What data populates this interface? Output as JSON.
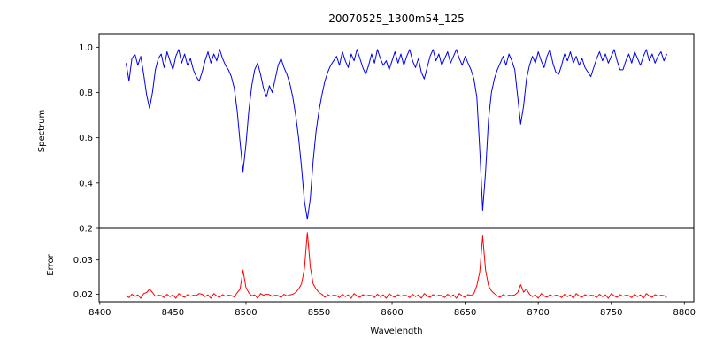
{
  "figure": {
    "title": "20070525_1300m54_125",
    "background": "#ffffff"
  },
  "chart_data": [
    {
      "type": "line",
      "title": "20070525_1300m54_125",
      "ylabel": "Spectrum",
      "xlim": [
        8399.5,
        8806.5
      ],
      "ylim": [
        0.2,
        1.06
      ],
      "yticks": [
        0.2,
        0.4,
        0.6,
        0.8,
        1.0
      ],
      "ytick_labels": [
        "0.2",
        "0.4",
        "0.6",
        "0.8",
        "1.0"
      ],
      "grid": false,
      "legend": "none",
      "annotations": [
        "strong absorption lines near 8498, 8542, 8662 (Ca II triplet), smaller line near 8688"
      ],
      "series": [
        {
          "name": "spectrum",
          "color": "#0000ee",
          "x_start": 8418,
          "x_step": 2,
          "values": [
            0.93,
            0.85,
            0.95,
            0.97,
            0.92,
            0.96,
            0.88,
            0.79,
            0.73,
            0.8,
            0.9,
            0.95,
            0.97,
            0.91,
            0.98,
            0.94,
            0.9,
            0.96,
            0.99,
            0.93,
            0.97,
            0.92,
            0.95,
            0.9,
            0.87,
            0.85,
            0.89,
            0.94,
            0.98,
            0.93,
            0.97,
            0.94,
            0.99,
            0.95,
            0.92,
            0.9,
            0.87,
            0.82,
            0.72,
            0.58,
            0.45,
            0.57,
            0.72,
            0.83,
            0.9,
            0.93,
            0.88,
            0.82,
            0.78,
            0.83,
            0.8,
            0.86,
            0.92,
            0.95,
            0.91,
            0.88,
            0.84,
            0.78,
            0.7,
            0.6,
            0.47,
            0.32,
            0.24,
            0.33,
            0.5,
            0.63,
            0.72,
            0.79,
            0.85,
            0.89,
            0.92,
            0.94,
            0.96,
            0.92,
            0.98,
            0.94,
            0.91,
            0.97,
            0.94,
            0.99,
            0.95,
            0.91,
            0.88,
            0.92,
            0.97,
            0.93,
            0.99,
            0.95,
            0.92,
            0.94,
            0.9,
            0.94,
            0.98,
            0.93,
            0.97,
            0.92,
            0.96,
            0.99,
            0.94,
            0.91,
            0.95,
            0.89,
            0.86,
            0.91,
            0.96,
            0.99,
            0.94,
            0.97,
            0.92,
            0.95,
            0.98,
            0.93,
            0.96,
            0.99,
            0.95,
            0.92,
            0.96,
            0.93,
            0.9,
            0.86,
            0.78,
            0.55,
            0.28,
            0.45,
            0.68,
            0.8,
            0.86,
            0.9,
            0.93,
            0.96,
            0.92,
            0.97,
            0.94,
            0.9,
            0.78,
            0.66,
            0.74,
            0.86,
            0.92,
            0.96,
            0.93,
            0.98,
            0.94,
            0.91,
            0.96,
            0.99,
            0.93,
            0.89,
            0.88,
            0.92,
            0.97,
            0.94,
            0.98,
            0.93,
            0.96,
            0.92,
            0.95,
            0.91,
            0.89,
            0.87,
            0.91,
            0.95,
            0.98,
            0.94,
            0.97,
            0.93,
            0.96,
            0.99,
            0.94,
            0.9,
            0.9,
            0.94,
            0.97,
            0.93,
            0.98,
            0.95,
            0.92,
            0.96,
            0.99,
            0.94,
            0.97,
            0.93,
            0.96,
            0.98,
            0.94,
            0.97
          ]
        }
      ]
    },
    {
      "type": "line",
      "ylabel": "Error",
      "xlabel": "Wavelength",
      "xlim": [
        8399.5,
        8806.5
      ],
      "ylim": [
        0.0178,
        0.0392
      ],
      "yticks": [
        0.02,
        0.03
      ],
      "ytick_labels": [
        "0.02",
        "0.03"
      ],
      "xticks": [
        8400,
        8450,
        8500,
        8550,
        8600,
        8650,
        8700,
        8750,
        8800
      ],
      "xtick_labels": [
        "8400",
        "8450",
        "8500",
        "8550",
        "8600",
        "8650",
        "8700",
        "8750",
        "8800"
      ],
      "grid": false,
      "legend": "none",
      "annotations": [
        "error spikes at 8498, 8542, 8662, 8688 matching the absorption lines"
      ],
      "series": [
        {
          "name": "error",
          "color": "#ff0000",
          "x_start": 8418,
          "x_step": 2,
          "values": [
            0.0196,
            0.019,
            0.02,
            0.0193,
            0.0198,
            0.0188,
            0.0202,
            0.0205,
            0.0215,
            0.0205,
            0.0194,
            0.0197,
            0.0196,
            0.019,
            0.02,
            0.0193,
            0.0198,
            0.0188,
            0.0202,
            0.0195,
            0.0191,
            0.0199,
            0.0194,
            0.0197,
            0.0196,
            0.0202,
            0.02,
            0.0193,
            0.0198,
            0.0188,
            0.0202,
            0.0195,
            0.0191,
            0.0199,
            0.0194,
            0.0197,
            0.0196,
            0.0192,
            0.0204,
            0.0215,
            0.027,
            0.022,
            0.0204,
            0.0195,
            0.0198,
            0.0188,
            0.0202,
            0.0197,
            0.02,
            0.0199,
            0.0194,
            0.0197,
            0.0196,
            0.019,
            0.02,
            0.0195,
            0.0198,
            0.02,
            0.0205,
            0.0215,
            0.023,
            0.0275,
            0.038,
            0.028,
            0.023,
            0.0215,
            0.0205,
            0.02,
            0.0191,
            0.0199,
            0.0194,
            0.0197,
            0.0196,
            0.019,
            0.02,
            0.0193,
            0.0198,
            0.0188,
            0.0202,
            0.0195,
            0.0191,
            0.0199,
            0.0194,
            0.0197,
            0.0196,
            0.019,
            0.02,
            0.0193,
            0.0198,
            0.0188,
            0.0202,
            0.0195,
            0.0191,
            0.0199,
            0.0194,
            0.0197,
            0.0196,
            0.019,
            0.02,
            0.0193,
            0.0198,
            0.0188,
            0.0202,
            0.0195,
            0.0191,
            0.0199,
            0.0194,
            0.0197,
            0.0196,
            0.019,
            0.02,
            0.0193,
            0.0198,
            0.0188,
            0.0202,
            0.0195,
            0.0191,
            0.0199,
            0.0196,
            0.0202,
            0.0225,
            0.0265,
            0.037,
            0.027,
            0.0225,
            0.021,
            0.0202,
            0.0195,
            0.0191,
            0.0199,
            0.0194,
            0.0197,
            0.0196,
            0.0198,
            0.0205,
            0.0228,
            0.0206,
            0.0215,
            0.02,
            0.0193,
            0.0198,
            0.0188,
            0.0202,
            0.0195,
            0.0191,
            0.0199,
            0.0194,
            0.0197,
            0.0196,
            0.019,
            0.02,
            0.0193,
            0.0198,
            0.0188,
            0.0202,
            0.0195,
            0.0191,
            0.0199,
            0.0194,
            0.0197,
            0.0196,
            0.019,
            0.02,
            0.0193,
            0.0198,
            0.0188,
            0.0202,
            0.0195,
            0.0191,
            0.0199,
            0.0194,
            0.0197,
            0.0196,
            0.019,
            0.02,
            0.0193,
            0.0198,
            0.0188,
            0.0202,
            0.0195,
            0.0191,
            0.0199,
            0.0194,
            0.0197,
            0.0196,
            0.019
          ]
        }
      ]
    }
  ]
}
